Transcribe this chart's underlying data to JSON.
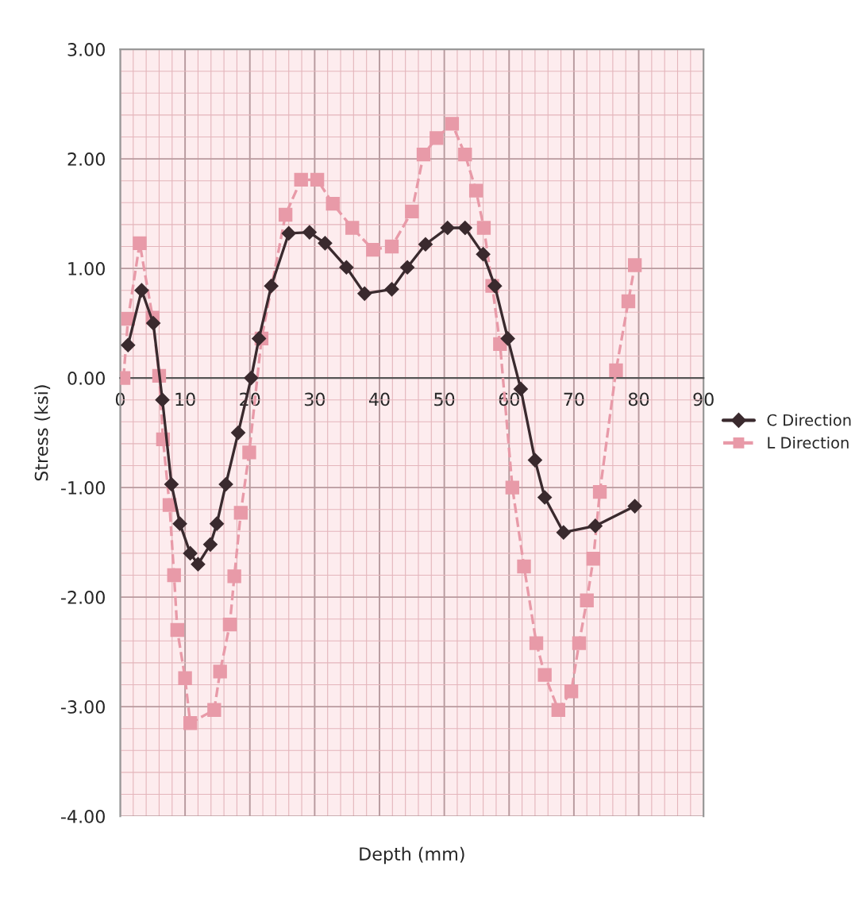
{
  "chart_data": {
    "type": "line",
    "xlabel": "Depth (mm)",
    "ylabel": "Stress (ksi)",
    "xlim": [
      0,
      90
    ],
    "xticks": [
      0,
      {
        "value": 2,
        "label": null
      },
      {
        "value": 4,
        "label": null
      },
      {
        "value": 6,
        "label": null
      },
      {
        "value": 8,
        "label": null
      },
      10,
      {
        "value": 12,
        "label": null
      },
      {
        "value": 14,
        "label": null
      },
      {
        "value": 16,
        "label": null
      },
      {
        "value": 18,
        "label": null
      },
      20,
      {
        "value": 22,
        "label": null
      },
      {
        "value": 24,
        "label": null
      },
      {
        "value": 26,
        "label": null
      },
      {
        "value": 28,
        "label": null
      },
      30,
      {
        "value": 32,
        "label": null
      },
      {
        "value": 34,
        "label": null
      },
      {
        "value": 36,
        "label": null
      },
      {
        "value": 38,
        "label": null
      },
      40,
      {
        "value": 42,
        "label": null
      },
      {
        "value": 44,
        "label": null
      },
      {
        "value": 46,
        "label": null
      },
      {
        "value": 48,
        "label": null
      },
      50,
      {
        "value": 52,
        "label": null
      },
      {
        "value": 54,
        "label": null
      },
      {
        "value": 56,
        "label": null
      },
      {
        "value": 58,
        "label": null
      },
      60,
      {
        "value": 62,
        "label": null
      },
      {
        "value": 64,
        "label": null
      },
      {
        "value": 66,
        "label": null
      },
      {
        "value": 68,
        "label": null
      },
      70,
      {
        "value": 72,
        "label": null
      },
      {
        "value": 74,
        "label": null
      },
      {
        "value": 76,
        "label": null
      },
      {
        "value": 78,
        "label": null
      },
      80,
      {
        "value": 82,
        "label": null
      },
      {
        "value": 84,
        "label": null
      },
      {
        "value": 86,
        "label": null
      },
      {
        "value": 88,
        "label": null
      },
      90
    ],
    "ylim": [
      -4,
      3
    ],
    "yticks": [
      {
        "value": -4,
        "label": "-4.00"
      },
      {
        "value": -3.8,
        "label": null
      },
      {
        "value": -3.6,
        "label": null
      },
      {
        "value": -3.4,
        "label": null
      },
      {
        "value": -3.2,
        "label": null
      },
      {
        "value": -3,
        "label": "-3.00"
      },
      {
        "value": -2.8,
        "label": null
      },
      {
        "value": -2.6,
        "label": null
      },
      {
        "value": -2.4,
        "label": null
      },
      {
        "value": -2.2,
        "label": null
      },
      {
        "value": -2,
        "label": "-2.00"
      },
      {
        "value": -1.8,
        "label": null
      },
      {
        "value": -1.6,
        "label": null
      },
      {
        "value": -1.4,
        "label": null
      },
      {
        "value": -1.2,
        "label": null
      },
      {
        "value": -1,
        "label": "-1.00"
      },
      {
        "value": -0.8,
        "label": null
      },
      {
        "value": -0.6,
        "label": null
      },
      {
        "value": -0.4,
        "label": null
      },
      {
        "value": -0.2,
        "label": null
      },
      {
        "value": 0,
        "label": "0.00"
      },
      {
        "value": 0.2,
        "label": null
      },
      {
        "value": 0.4,
        "label": null
      },
      {
        "value": 0.6,
        "label": null
      },
      {
        "value": 0.8,
        "label": null
      },
      {
        "value": 1,
        "label": "1.00"
      },
      {
        "value": 1.2,
        "label": null
      },
      {
        "value": 1.4,
        "label": null
      },
      {
        "value": 1.6,
        "label": null
      },
      {
        "value": 1.8,
        "label": null
      },
      {
        "value": 2,
        "label": "2.00"
      },
      {
        "value": 2.2,
        "label": null
      },
      {
        "value": 2.4,
        "label": null
      },
      {
        "value": 2.6,
        "label": null
      },
      {
        "value": 2.8,
        "label": null
      },
      {
        "value": 3,
        "label": "3.00"
      }
    ],
    "grid": true,
    "legend": "right",
    "series": [
      {
        "name": "C Direction",
        "color": "#3a2a2e",
        "marker": "diamond",
        "line_style": "solid",
        "x": [
          1.2,
          3.3,
          5.1,
          6.5,
          7.9,
          9.2,
          10.8,
          12,
          13.9,
          14.9,
          16.3,
          18.2,
          20.2,
          21.4,
          23.3,
          26,
          29.2,
          31.6,
          34.9,
          37.7,
          41.9,
          44.3,
          47.1,
          50.5,
          53.2,
          56,
          57.8,
          59.8,
          61.8,
          64,
          65.5,
          68.4,
          73.3,
          79.4
        ],
        "values": [
          0.3,
          0.8,
          0.5,
          -0.2,
          -0.97,
          -1.33,
          -1.6,
          -1.7,
          -1.52,
          -1.33,
          -0.97,
          -0.5,
          0,
          0.36,
          0.84,
          1.32,
          1.33,
          1.23,
          1.01,
          0.77,
          0.81,
          1.01,
          1.22,
          1.37,
          1.37,
          1.13,
          0.84,
          0.36,
          -0.1,
          -0.75,
          -1.09,
          -1.41,
          -1.35,
          -1.17
        ]
      },
      {
        "name": "L Direction",
        "color": "#e89aa8",
        "marker": "square",
        "line_style": "dashed",
        "x": [
          0.5,
          1.2,
          3,
          5,
          6,
          6.6,
          7.6,
          8.3,
          8.8,
          10,
          10.8,
          14.5,
          15.4,
          16.9,
          17.6,
          18.6,
          19.9,
          21.8,
          25.5,
          27.9,
          30.4,
          32.8,
          35.8,
          39,
          41.9,
          45,
          46.8,
          48.8,
          51.2,
          53.2,
          54.9,
          56.1,
          57.4,
          58.6,
          60.5,
          62.3,
          64.2,
          65.5,
          67.6,
          69.6,
          70.8,
          72,
          73,
          74,
          76.5,
          78.4,
          79.4
        ],
        "values": [
          0,
          0.54,
          1.23,
          0.55,
          0.02,
          -0.56,
          -1.16,
          -1.8,
          -2.3,
          -2.74,
          -3.15,
          -3.03,
          -2.68,
          -2.25,
          -1.81,
          -1.23,
          -0.68,
          0.36,
          1.49,
          1.81,
          1.81,
          1.59,
          1.37,
          1.17,
          1.2,
          1.52,
          2.04,
          2.19,
          2.32,
          2.04,
          1.71,
          1.37,
          0.84,
          0.31,
          -1.0,
          -1.72,
          -2.42,
          -2.71,
          -3.03,
          -2.86,
          -2.42,
          -2.03,
          -1.65,
          -1.04,
          0.07,
          0.7,
          1.03
        ]
      }
    ]
  }
}
